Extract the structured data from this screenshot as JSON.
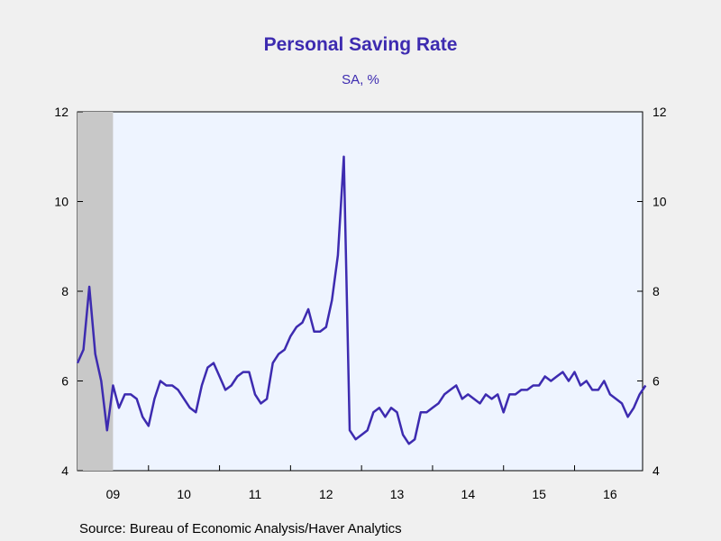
{
  "chart_data": {
    "type": "line",
    "title": "Personal Saving Rate",
    "subtitle": "SA, %",
    "source": "Source:  Bureau of Economic Analysis/Haver Analytics",
    "ylim": [
      4,
      12
    ],
    "yticks": [
      4,
      6,
      8,
      10,
      12
    ],
    "xlim": [
      2009.0,
      2016.958
    ],
    "xtick_labels": [
      "09",
      "10",
      "11",
      "12",
      "13",
      "14",
      "15",
      "16"
    ],
    "recession_shading": [
      2009.0,
      2009.5
    ],
    "grid": false,
    "colors": {
      "line": "#3d2bb0",
      "plot_bg": "#eef4ff",
      "recession": "#c8c8c8"
    },
    "series": [
      {
        "start": "2009-01",
        "frequency": "monthly",
        "values": [
          6.4,
          6.7,
          8.1,
          6.6,
          6.0,
          4.9,
          5.9,
          5.4,
          5.7,
          5.7,
          5.6,
          5.2,
          5.0,
          5.6,
          6.0,
          5.9,
          5.9,
          5.8,
          5.6,
          5.4,
          5.3,
          5.9,
          6.3,
          6.4,
          6.1,
          5.8,
          5.9,
          6.1,
          6.2,
          6.2,
          5.7,
          5.5,
          5.6,
          6.4,
          6.6,
          6.7,
          7.0,
          7.2,
          7.3,
          7.6,
          7.1,
          7.1,
          7.2,
          7.8,
          8.8,
          11.0,
          4.9,
          4.7,
          4.8,
          4.9,
          5.3,
          5.4,
          5.2,
          5.4,
          5.3,
          4.8,
          4.6,
          4.7,
          5.3,
          5.3,
          5.4,
          5.5,
          5.7,
          5.8,
          5.9,
          5.6,
          5.7,
          5.6,
          5.5,
          5.7,
          5.6,
          5.7,
          5.3,
          5.7,
          5.7,
          5.8,
          5.8,
          5.9,
          5.9,
          6.1,
          6.0,
          6.1,
          6.2,
          6.0,
          6.2,
          5.9,
          6.0,
          5.8,
          5.8,
          6.0,
          5.7,
          5.6,
          5.5,
          5.2,
          5.4,
          5.7,
          5.9
        ]
      }
    ]
  }
}
